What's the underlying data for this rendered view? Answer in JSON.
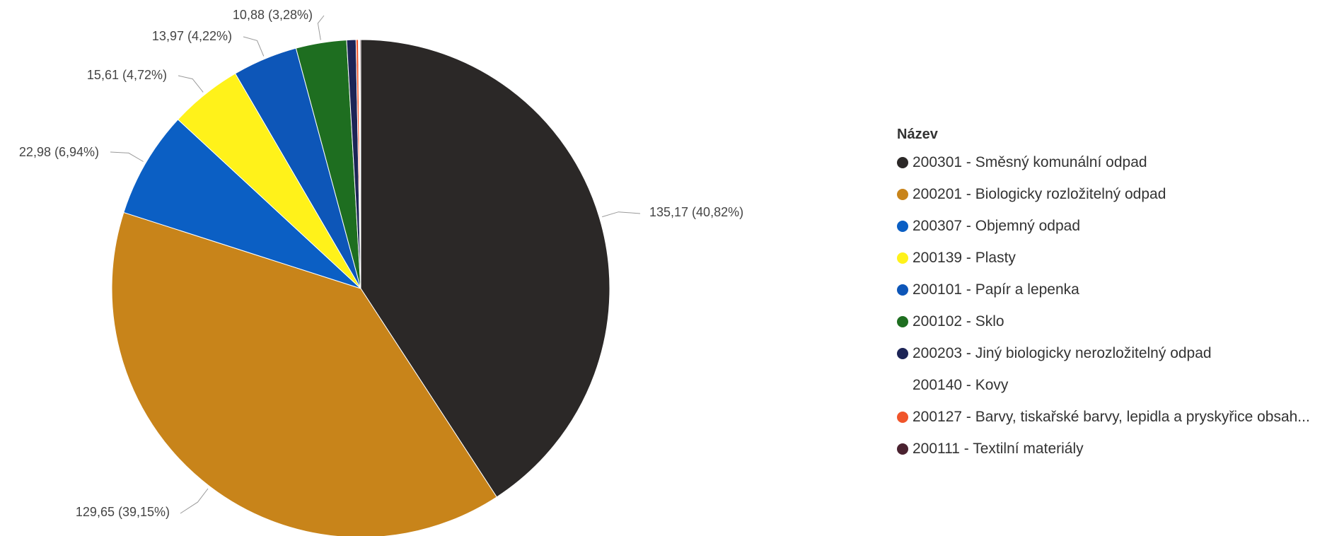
{
  "chart_data": {
    "type": "pie",
    "legend_title": "Název",
    "legend_position": "right",
    "slices": [
      {
        "name": "200301 - Směsný komunální odpad",
        "value": 135.17,
        "label": "135,17 (40,82%)",
        "color": "#2b2827"
      },
      {
        "name": "200201 - Biologicky rozložitelný odpad",
        "value": 129.65,
        "label": "129,65 (39,15%)",
        "color": "#c8841a"
      },
      {
        "name": "200307 - Objemný odpad",
        "value": 22.98,
        "label": "22,98 (6,94%)",
        "color": "#0b5fc4"
      },
      {
        "name": "200139 - Plasty",
        "value": 15.61,
        "label": "15,61 (4,72%)",
        "color": "#fff21a"
      },
      {
        "name": "200101 - Papír a lepenka",
        "value": 13.97,
        "label": "13,97 (4,22%)",
        "color": "#0d56b8"
      },
      {
        "name": "200102 - Sklo",
        "value": 10.88,
        "label": "10,88 (3,28%)",
        "color": "#1e6e20"
      },
      {
        "name": "200203 - Jiný biologicky nerozložitelný odpad",
        "value": 2.0,
        "label": "",
        "color": "#1c2456"
      },
      {
        "name": "200140 - Kovy",
        "value": 0.3,
        "label": "",
        "color": "#ffffff"
      },
      {
        "name": "200127 - Barvy, tiskařské barvy, lepidla a pryskyřice obsah...",
        "value": 0.5,
        "label": "",
        "color": "#f0552a"
      },
      {
        "name": "200111 - Textilní materiály",
        "value": 0.2,
        "label": "",
        "color": "#4a2230"
      }
    ]
  }
}
